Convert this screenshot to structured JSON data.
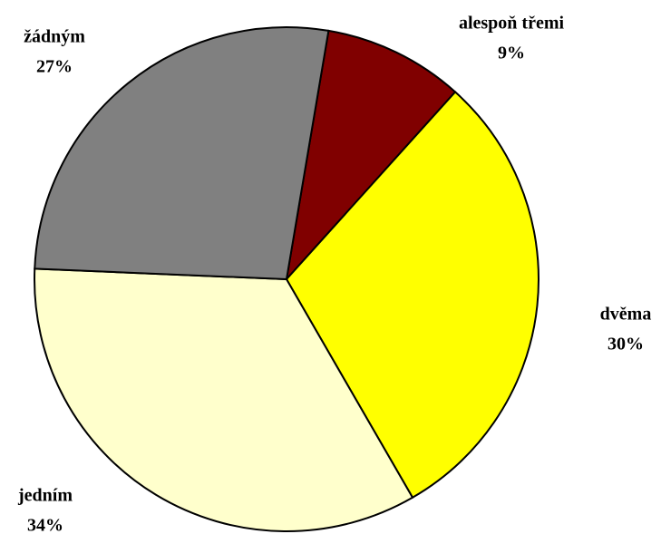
{
  "chart_data": {
    "type": "pie",
    "categories": [
      "alespoň třemi",
      "dvěma",
      "jedním",
      "žádným"
    ],
    "values": [
      9,
      30,
      34,
      27
    ],
    "value_labels": [
      "9%",
      "30%",
      "34%",
      "27%"
    ],
    "colors": [
      "#800000",
      "#ffff00",
      "#ffffcc",
      "#808080"
    ]
  }
}
